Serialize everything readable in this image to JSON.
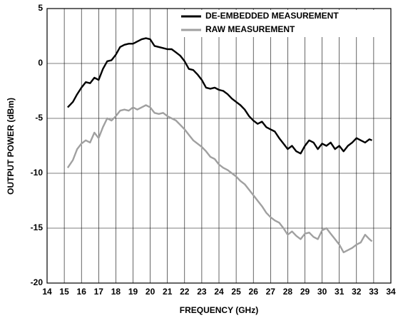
{
  "chart_data": {
    "type": "line",
    "xlabel": "FREQUENCY (GHz)",
    "ylabel": "OUTPUT POWER (dBm)",
    "x": [
      15.2,
      15.5,
      15.75,
      16,
      16.25,
      16.5,
      16.75,
      17,
      17.25,
      17.5,
      17.75,
      18,
      18.25,
      18.5,
      18.75,
      19,
      19.25,
      19.5,
      19.75,
      20,
      20.25,
      20.5,
      20.75,
      21,
      21.25,
      21.5,
      21.75,
      22,
      22.25,
      22.5,
      22.75,
      23,
      23.25,
      23.5,
      23.75,
      24,
      24.25,
      24.5,
      24.75,
      25,
      25.25,
      25.5,
      25.75,
      26,
      26.25,
      26.5,
      26.75,
      27,
      27.25,
      27.5,
      27.75,
      28,
      28.25,
      28.5,
      28.75,
      29,
      29.25,
      29.5,
      29.75,
      30,
      30.25,
      30.5,
      30.75,
      31,
      31.25,
      31.5,
      31.75,
      32,
      32.25,
      32.5,
      32.75,
      32.9
    ],
    "series": [
      {
        "name": "DE-EMBEDDED MEASUREMENT",
        "color": "#000000",
        "values": [
          -4.0,
          -3.5,
          -2.8,
          -2.2,
          -1.7,
          -1.8,
          -1.3,
          -1.5,
          -0.5,
          0.2,
          0.3,
          0.8,
          1.5,
          1.7,
          1.8,
          1.8,
          2.0,
          2.2,
          2.3,
          2.2,
          1.6,
          1.5,
          1.4,
          1.3,
          1.3,
          1.0,
          0.7,
          0.2,
          -0.5,
          -0.6,
          -1.0,
          -1.5,
          -2.2,
          -2.3,
          -2.2,
          -2.4,
          -2.5,
          -2.8,
          -3.2,
          -3.5,
          -3.8,
          -4.2,
          -4.8,
          -5.2,
          -5.5,
          -5.3,
          -5.8,
          -6.0,
          -6.2,
          -6.8,
          -7.3,
          -7.8,
          -7.5,
          -8.0,
          -8.2,
          -7.5,
          -7.0,
          -7.2,
          -7.8,
          -7.3,
          -7.5,
          -7.2,
          -7.8,
          -7.5,
          -8.0,
          -7.5,
          -7.2,
          -6.8,
          -7.0,
          -7.2,
          -6.9,
          -7.0
        ]
      },
      {
        "name": "RAW MEASUREMENT",
        "color": "#a0a0a0",
        "values": [
          -9.5,
          -8.8,
          -7.8,
          -7.3,
          -7.0,
          -7.2,
          -6.3,
          -6.8,
          -5.8,
          -5.0,
          -5.2,
          -4.8,
          -4.3,
          -4.2,
          -4.3,
          -4.0,
          -4.2,
          -4.0,
          -3.8,
          -4.0,
          -4.5,
          -4.6,
          -4.5,
          -4.8,
          -5.0,
          -5.2,
          -5.6,
          -6.0,
          -6.5,
          -7.0,
          -7.3,
          -7.6,
          -8.0,
          -8.5,
          -8.7,
          -9.2,
          -9.5,
          -9.7,
          -10.0,
          -10.3,
          -10.7,
          -11.0,
          -11.5,
          -12.0,
          -12.5,
          -13.0,
          -13.6,
          -14.0,
          -14.3,
          -14.5,
          -15.0,
          -15.6,
          -15.3,
          -15.7,
          -16.0,
          -15.5,
          -15.4,
          -15.8,
          -16.0,
          -15.2,
          -15.0,
          -15.5,
          -16.0,
          -16.5,
          -17.2,
          -17.0,
          -16.8,
          -16.5,
          -16.3,
          -15.6,
          -16.0,
          -16.2
        ]
      }
    ],
    "xlim": [
      14,
      34
    ],
    "xticks": [
      14,
      15,
      16,
      17,
      18,
      19,
      20,
      21,
      22,
      23,
      24,
      25,
      26,
      27,
      28,
      29,
      30,
      31,
      32,
      33,
      34
    ],
    "ylim": [
      -20,
      5
    ],
    "yticks": [
      -20,
      -15,
      -10,
      -5,
      0,
      5
    ],
    "grid": true,
    "legend": "upper right"
  }
}
